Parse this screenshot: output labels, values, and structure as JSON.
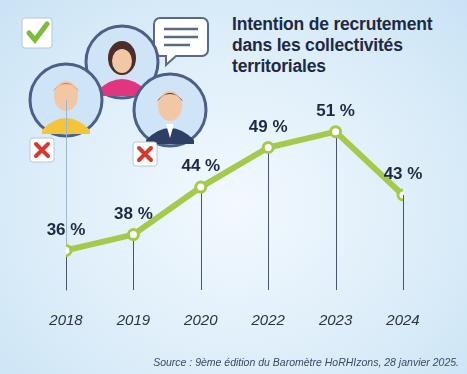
{
  "chart_data": {
    "type": "line",
    "title": "Intention de recrutement dans les collectivités territoriales",
    "source": "Source : 9ème édition du Baromètre HoRHIzons, 28 janvier 2025.",
    "categories": [
      "2018",
      "2019",
      "2020",
      "2022",
      "2023",
      "2024"
    ],
    "values": [
      36,
      38,
      44,
      49,
      51,
      43
    ],
    "value_labels": [
      "36 %",
      "38 %",
      "44 %",
      "49 %",
      "51 %",
      "43 %"
    ],
    "color": "#a5c94a",
    "marker": "circle",
    "ylim": [
      31,
      55
    ],
    "grid": false,
    "data_labels": true,
    "tick_labels": "x"
  }
}
